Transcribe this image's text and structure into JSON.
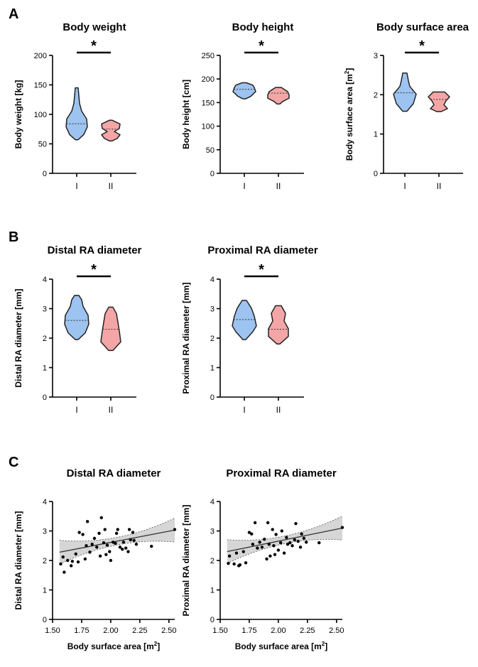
{
  "panels": {
    "a": "A",
    "b": "B",
    "c": "C"
  },
  "colors": {
    "group1": "#9dc3f0",
    "group2": "#f4a6a6",
    "outline": "#222222",
    "band": "#c8c8c8"
  },
  "chart_data": [
    {
      "type": "violin",
      "panel": "A",
      "title": "Body weight",
      "ylabel": "Body weight [kg]",
      "ylim": [
        0,
        200
      ],
      "yticks": [
        "0",
        "50",
        "100",
        "150",
        "200"
      ],
      "categories": [
        "I",
        "II"
      ],
      "significance": "*",
      "series": [
        {
          "name": "I",
          "min": 57,
          "max": 145,
          "median": 84
        },
        {
          "name": "II",
          "min": 55,
          "max": 90,
          "median": 75
        }
      ]
    },
    {
      "type": "violin",
      "panel": "A",
      "title": "Body height",
      "ylabel": "Body height [cm]",
      "ylim": [
        0,
        250
      ],
      "yticks": [
        "0",
        "50",
        "100",
        "150",
        "200",
        "250"
      ],
      "categories": [
        "I",
        "II"
      ],
      "significance": "*",
      "series": [
        {
          "name": "I",
          "min": 158,
          "max": 192,
          "median": 178
        },
        {
          "name": "II",
          "min": 147,
          "max": 182,
          "median": 170
        }
      ]
    },
    {
      "type": "violin",
      "panel": "A",
      "title": "Body surface area",
      "ylabel": "Body surface area [m",
      "ylabel_sup": "2",
      "ylabel_end": "]",
      "ylim": [
        0,
        3
      ],
      "yticks": [
        "0",
        "1",
        "2",
        "3"
      ],
      "categories": [
        "I",
        "II"
      ],
      "significance": "*",
      "series": [
        {
          "name": "I",
          "min": 1.58,
          "max": 2.55,
          "median": 2.05
        },
        {
          "name": "II",
          "min": 1.57,
          "max": 2.07,
          "median": 1.88
        }
      ]
    },
    {
      "type": "violin",
      "panel": "B",
      "title": "Distal RA diameter",
      "ylabel": "Distal RA diameter [mm]",
      "ylim": [
        0,
        4
      ],
      "yticks": [
        "0",
        "1",
        "2",
        "3",
        "4"
      ],
      "categories": [
        "I",
        "II"
      ],
      "significance": "*",
      "series": [
        {
          "name": "I",
          "min": 1.95,
          "max": 3.45,
          "median": 2.6
        },
        {
          "name": "II",
          "min": 1.58,
          "max": 3.05,
          "median": 2.3
        }
      ]
    },
    {
      "type": "violin",
      "panel": "B",
      "title": "Proximal RA diameter",
      "ylabel": "Proximal RA diameter [mm]",
      "ylim": [
        0,
        4
      ],
      "yticks": [
        "0",
        "1",
        "2",
        "3",
        "4"
      ],
      "categories": [
        "I",
        "II"
      ],
      "significance": "*",
      "series": [
        {
          "name": "I",
          "min": 1.95,
          "max": 3.28,
          "median": 2.63
        },
        {
          "name": "II",
          "min": 1.8,
          "max": 3.1,
          "median": 2.3
        }
      ]
    },
    {
      "type": "scatter",
      "panel": "C",
      "title": "Distal RA diameter",
      "ylabel": "Distal RA diameter [mm]",
      "xlabel": "Body surface area [m",
      "xlabel_sup": "2",
      "xlabel_end": "]",
      "xlim": [
        1.5,
        2.55
      ],
      "ylim": [
        0,
        4
      ],
      "xticks": [
        "1.50",
        "1.75",
        "2.00",
        "2.25",
        "2.50"
      ],
      "yticks": [
        "0",
        "1",
        "2",
        "3",
        "4"
      ],
      "fit": {
        "x1": 1.56,
        "y1": 2.28,
        "x2": 2.55,
        "y2": 3.03
      },
      "points": [
        [
          1.57,
          1.88
        ],
        [
          1.59,
          2.12
        ],
        [
          1.6,
          1.6
        ],
        [
          1.63,
          2.0
        ],
        [
          1.66,
          1.82
        ],
        [
          1.67,
          1.97
        ],
        [
          1.7,
          2.22
        ],
        [
          1.72,
          1.95
        ],
        [
          1.73,
          2.95
        ],
        [
          1.76,
          2.88
        ],
        [
          1.78,
          2.05
        ],
        [
          1.79,
          2.5
        ],
        [
          1.8,
          3.32
        ],
        [
          1.82,
          2.28
        ],
        [
          1.84,
          2.55
        ],
        [
          1.86,
          2.75
        ],
        [
          1.88,
          2.45
        ],
        [
          1.9,
          2.92
        ],
        [
          1.91,
          2.15
        ],
        [
          1.92,
          3.45
        ],
        [
          1.94,
          2.6
        ],
        [
          1.95,
          3.05
        ],
        [
          1.96,
          2.2
        ],
        [
          1.97,
          2.52
        ],
        [
          1.99,
          2.3
        ],
        [
          2.0,
          2.0
        ],
        [
          2.02,
          2.62
        ],
        [
          2.04,
          2.58
        ],
        [
          2.05,
          2.92
        ],
        [
          2.06,
          3.05
        ],
        [
          2.08,
          2.45
        ],
        [
          2.1,
          2.38
        ],
        [
          2.11,
          2.62
        ],
        [
          2.13,
          2.42
        ],
        [
          2.15,
          2.3
        ],
        [
          2.16,
          3.05
        ],
        [
          2.17,
          2.7
        ],
        [
          2.19,
          2.95
        ],
        [
          2.2,
          2.68
        ],
        [
          2.22,
          2.55
        ],
        [
          2.35,
          2.48
        ],
        [
          2.55,
          3.05
        ]
      ]
    },
    {
      "type": "scatter",
      "panel": "C",
      "title": "Proximal RA diameter",
      "ylabel": "Proximal RA diameter [mm]",
      "xlabel": "Body surface area [m",
      "xlabel_sup": "2",
      "xlabel_end": "]",
      "xlim": [
        1.5,
        2.55
      ],
      "ylim": [
        0,
        4
      ],
      "xticks": [
        "1.50",
        "1.75",
        "2.00",
        "2.25",
        "2.50"
      ],
      "yticks": [
        "0",
        "1",
        "2",
        "3",
        "4"
      ],
      "fit": {
        "x1": 1.56,
        "y1": 2.3,
        "x2": 2.55,
        "y2": 3.1
      },
      "points": [
        [
          1.57,
          1.9
        ],
        [
          1.58,
          2.15
        ],
        [
          1.62,
          1.88
        ],
        [
          1.64,
          2.25
        ],
        [
          1.66,
          1.82
        ],
        [
          1.67,
          1.85
        ],
        [
          1.7,
          2.3
        ],
        [
          1.72,
          1.92
        ],
        [
          1.75,
          2.95
        ],
        [
          1.77,
          2.9
        ],
        [
          1.78,
          2.55
        ],
        [
          1.8,
          3.28
        ],
        [
          1.82,
          2.42
        ],
        [
          1.84,
          2.62
        ],
        [
          1.86,
          2.45
        ],
        [
          1.88,
          2.72
        ],
        [
          1.9,
          2.05
        ],
        [
          1.91,
          3.28
        ],
        [
          1.92,
          2.55
        ],
        [
          1.93,
          2.15
        ],
        [
          1.95,
          3.05
        ],
        [
          1.96,
          2.5
        ],
        [
          1.97,
          2.2
        ],
        [
          1.98,
          2.88
        ],
        [
          2.0,
          2.35
        ],
        [
          2.02,
          2.6
        ],
        [
          2.03,
          3.0
        ],
        [
          2.05,
          2.25
        ],
        [
          2.07,
          2.78
        ],
        [
          2.08,
          2.55
        ],
        [
          2.1,
          2.6
        ],
        [
          2.12,
          2.5
        ],
        [
          2.14,
          2.7
        ],
        [
          2.15,
          3.25
        ],
        [
          2.17,
          2.65
        ],
        [
          2.19,
          2.45
        ],
        [
          2.2,
          2.9
        ],
        [
          2.22,
          2.75
        ],
        [
          2.24,
          2.62
        ],
        [
          2.35,
          2.6
        ],
        [
          2.55,
          3.12
        ]
      ]
    }
  ]
}
